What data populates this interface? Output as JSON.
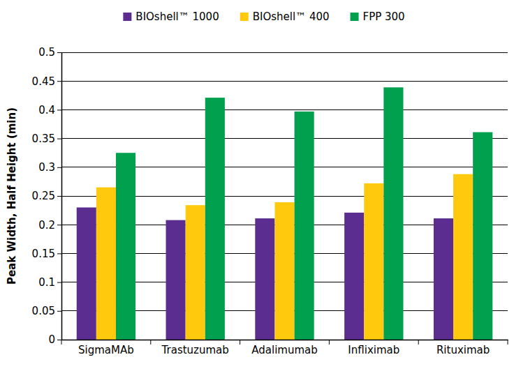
{
  "chart_data": {
    "type": "bar",
    "y_label": "Peak Width, Half Height (min)",
    "categories": [
      "SigmaMAb",
      "Trastuzumab",
      "Adalimumab",
      "Infliximab",
      "Rituximab"
    ],
    "series": [
      {
        "name": "BIOshell™ 1000",
        "color": "#5c2d91",
        "values": [
          0.23,
          0.208,
          0.211,
          0.221,
          0.211
        ]
      },
      {
        "name": "BIOshell™ 400",
        "color": "#ffc90e",
        "values": [
          0.265,
          0.234,
          0.239,
          0.272,
          0.288
        ]
      },
      {
        "name": "FPP 300",
        "color": "#00a04f",
        "values": [
          0.325,
          0.421,
          0.397,
          0.439,
          0.361
        ]
      }
    ],
    "ylim": [
      0,
      0.5
    ],
    "yticks": [
      0,
      0.05,
      0.1,
      0.15,
      0.2,
      0.25,
      0.3,
      0.35,
      0.4,
      0.45,
      0.5
    ],
    "grid": true,
    "legend": "top"
  }
}
